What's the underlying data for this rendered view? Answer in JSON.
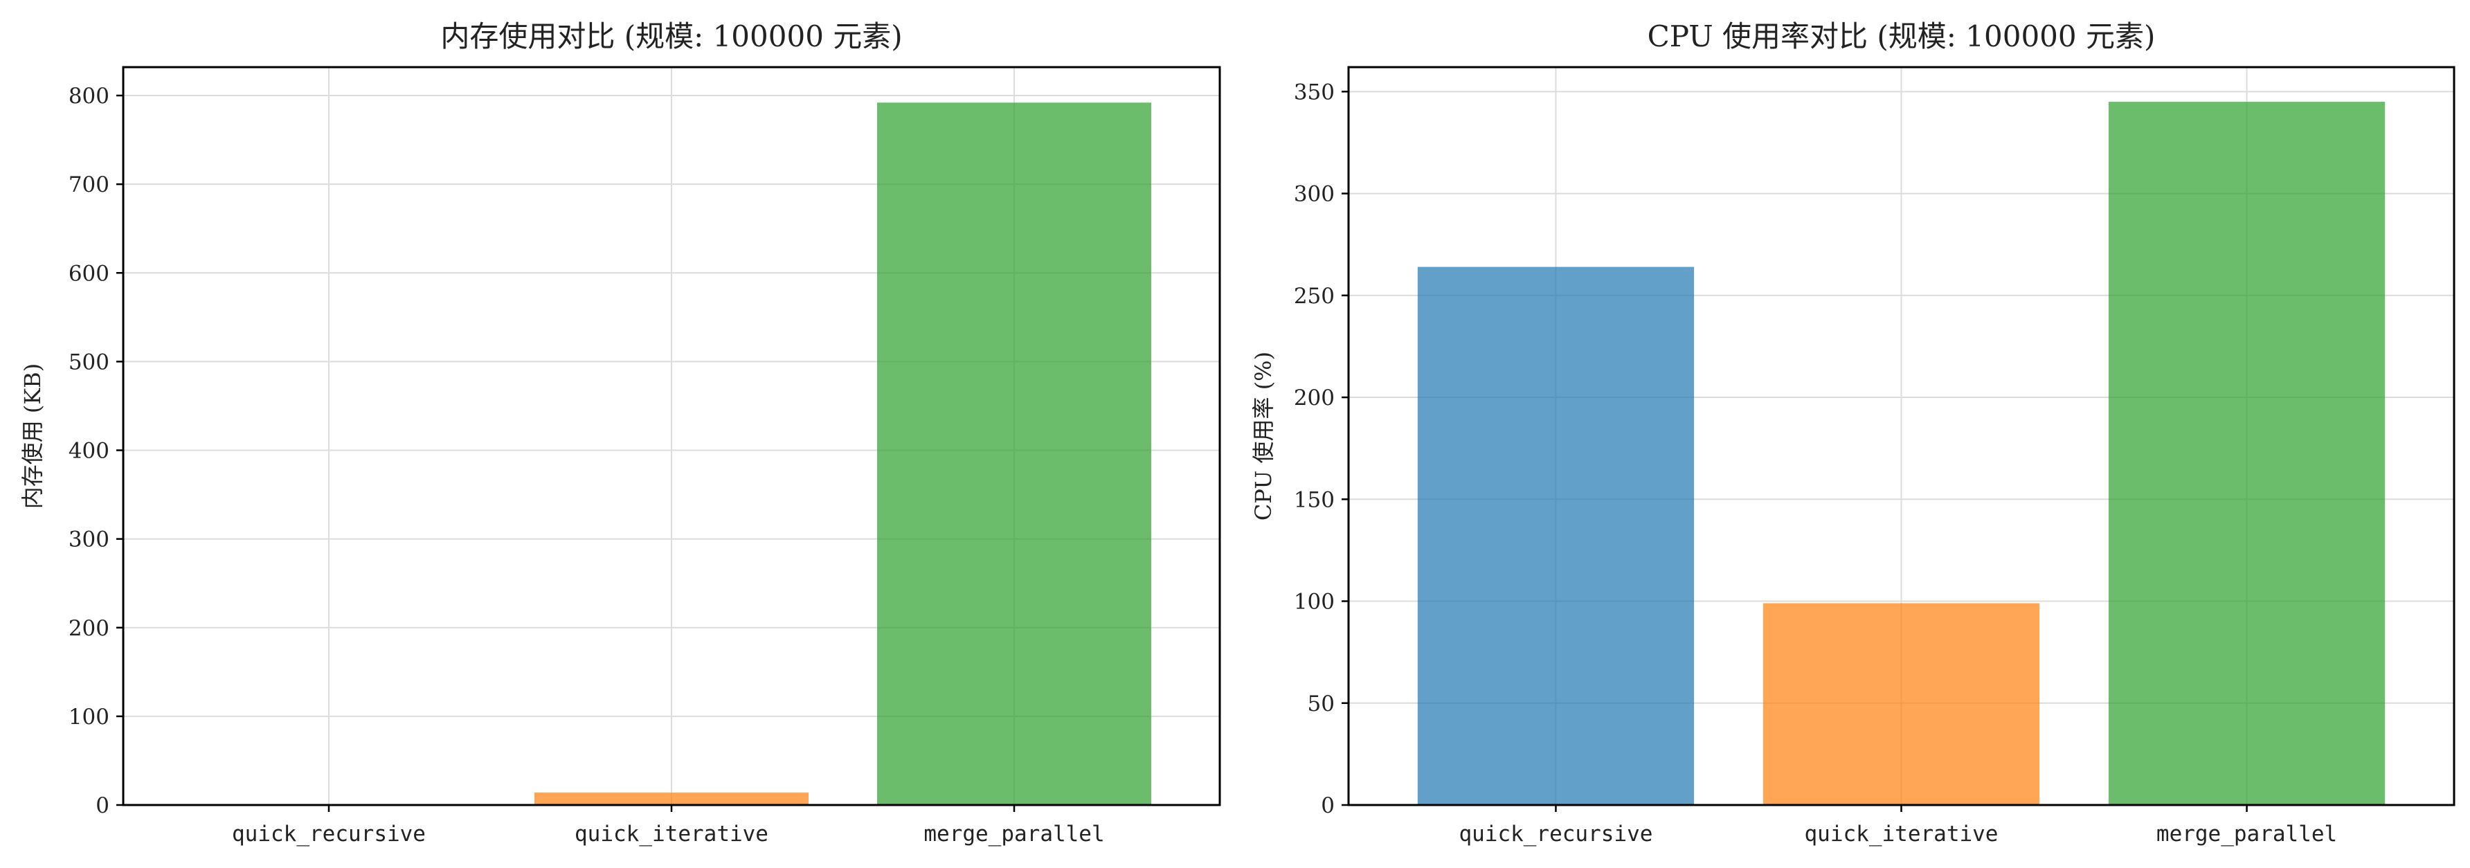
{
  "chart_data": [
    {
      "type": "bar",
      "title": "内存使用对比 (规模: 100000 元素)",
      "xlabel": "",
      "ylabel": "内存使用 (KB)",
      "categories": [
        "quick_recursive",
        "quick_iterative",
        "merge_parallel"
      ],
      "values": [
        0,
        14,
        792
      ],
      "colors": [
        "#1f77b4",
        "#ff7f0e",
        "#2ca02c"
      ],
      "ylim": [
        0,
        832
      ],
      "yticks": [
        0,
        100,
        200,
        300,
        400,
        500,
        600,
        700,
        800
      ],
      "grid": true
    },
    {
      "type": "bar",
      "title": "CPU 使用率对比 (规模: 100000 元素)",
      "xlabel": "",
      "ylabel": "CPU 使用率 (%)",
      "categories": [
        "quick_recursive",
        "quick_iterative",
        "merge_parallel"
      ],
      "values": [
        264,
        99,
        345
      ],
      "colors": [
        "#1f77b4",
        "#ff7f0e",
        "#2ca02c"
      ],
      "ylim": [
        0,
        362
      ],
      "yticks": [
        0,
        50,
        100,
        150,
        200,
        250,
        300,
        350
      ],
      "grid": true
    }
  ]
}
